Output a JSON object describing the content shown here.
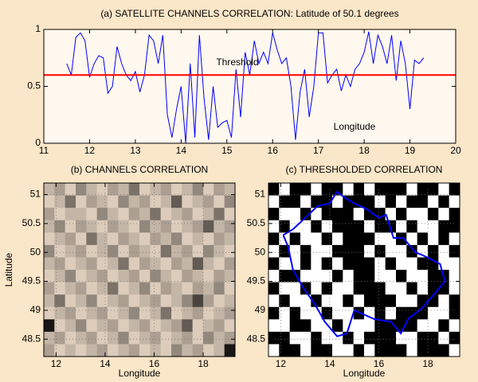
{
  "chart_data": [
    {
      "type": "line",
      "title": "(a) SATELLITE CHANNELS CORRELATION: Latitude of 50.1 degrees",
      "annotations": [
        "Threshold",
        "Longitude"
      ],
      "xlim": [
        11,
        20
      ],
      "ylim": [
        0,
        1
      ],
      "xticks": [
        11,
        12,
        13,
        14,
        15,
        16,
        17,
        18,
        19,
        20
      ],
      "yticks": [
        0,
        0.5,
        1
      ],
      "color": "#0000ff",
      "threshold": 0.6,
      "threshold_color": "#ff0000",
      "x": [
        11.5,
        11.6,
        11.7,
        11.8,
        11.9,
        12.0,
        12.1,
        12.2,
        12.3,
        12.4,
        12.5,
        12.6,
        12.7,
        12.8,
        12.9,
        13.0,
        13.1,
        13.2,
        13.3,
        13.4,
        13.5,
        13.6,
        13.7,
        13.8,
        13.9,
        14.0,
        14.1,
        14.2,
        14.3,
        14.4,
        14.5,
        14.6,
        14.7,
        14.8,
        14.9,
        15.0,
        15.1,
        15.2,
        15.3,
        15.4,
        15.5,
        15.6,
        15.7,
        15.8,
        15.9,
        16.0,
        16.1,
        16.2,
        16.3,
        16.4,
        16.5,
        16.6,
        16.7,
        16.8,
        16.9,
        17.0,
        17.1,
        17.2,
        17.3,
        17.4,
        17.5,
        17.6,
        17.7,
        17.8,
        17.9,
        18.0,
        18.1,
        18.2,
        18.3,
        18.4,
        18.5,
        18.6,
        18.7,
        18.8,
        18.9,
        19.0,
        19.1,
        19.2,
        19.3
      ],
      "values": [
        0.7,
        0.6,
        0.93,
        0.97,
        0.9,
        0.58,
        0.7,
        0.77,
        0.75,
        0.44,
        0.5,
        0.85,
        0.7,
        0.6,
        0.55,
        0.63,
        0.45,
        0.6,
        0.95,
        0.9,
        0.7,
        0.95,
        0.25,
        0.05,
        0.3,
        0.5,
        0,
        0.7,
        0.05,
        0.95,
        0.4,
        0.03,
        0.5,
        0.14,
        0.18,
        0.2,
        0.05,
        0.65,
        0.23,
        0.8,
        0.6,
        0.9,
        0.7,
        0.8,
        0.7,
        0.97,
        0.82,
        0.7,
        0.75,
        0.5,
        0.03,
        0.45,
        0.65,
        0.23,
        0.5,
        0.97,
        0.97,
        0.53,
        0.6,
        0.65,
        0.46,
        0.6,
        0.5,
        0.65,
        0.7,
        0.8,
        0.98,
        0.7,
        0.95,
        0.85,
        0.7,
        0.95,
        0.55,
        0.9,
        0.7,
        0.3,
        0.73,
        0.7,
        0.75
      ]
    },
    {
      "type": "heatmap",
      "title": "(b) CHANNELS CORRELATION",
      "xlabel": "Longitude",
      "ylabel": "Latitude",
      "xlim": [
        11.5,
        19.3
      ],
      "ylim": [
        48.2,
        51.2
      ],
      "xticks": [
        12,
        14,
        16,
        18
      ],
      "yticks": [
        48.5,
        49,
        49.5,
        50,
        50.5,
        51
      ],
      "grid": true,
      "color_low": "#f5e3d0",
      "color_high": "#000000",
      "z": [
        [
          0.2,
          0.3,
          0.1,
          0.4,
          0.2,
          0.1,
          0.3,
          0.2,
          0.5,
          0.1,
          0.2,
          0.3,
          0.1,
          0.2,
          0.4,
          0.1,
          0.3,
          0.2
        ],
        [
          0.1,
          0.2,
          0.5,
          0.1,
          0.3,
          0.2,
          0.1,
          0.4,
          0.2,
          0.3,
          0.1,
          0.2,
          0.6,
          0.1,
          0.2,
          0.3,
          0.1,
          0.4
        ],
        [
          0.3,
          0.1,
          0.2,
          0.2,
          0.1,
          0.4,
          0.2,
          0.1,
          0.3,
          0.2,
          0.5,
          0.1,
          0.2,
          0.3,
          0.1,
          0.2,
          0.5,
          0.1
        ],
        [
          0.2,
          0.4,
          0.1,
          0.3,
          0.2,
          0.1,
          0.3,
          0.2,
          0.1,
          0.4,
          0.2,
          0.3,
          0.1,
          0.2,
          0.3,
          0.6,
          0.2,
          0.3
        ],
        [
          0.1,
          0.2,
          0.3,
          0.1,
          0.5,
          0.2,
          0.1,
          0.3,
          0.2,
          0.1,
          0.3,
          0.2,
          0.4,
          0.1,
          0.2,
          0.1,
          0.3,
          0.2
        ],
        [
          0.4,
          0.1,
          0.2,
          0.3,
          0.1,
          0.2,
          0.4,
          0.1,
          0.3,
          0.2,
          0.1,
          0.5,
          0.2,
          0.3,
          0.1,
          0.4,
          0.2,
          0.1
        ],
        [
          0.2,
          0.3,
          0.1,
          0.2,
          0.3,
          0.1,
          0.2,
          0.5,
          0.1,
          0.3,
          0.2,
          0.1,
          0.3,
          0.2,
          0.6,
          0.2,
          0.1,
          0.3
        ],
        [
          0.1,
          0.2,
          0.4,
          0.1,
          0.2,
          0.3,
          0.1,
          0.2,
          0.3,
          0.1,
          0.4,
          0.2,
          0.1,
          0.3,
          0.2,
          0.1,
          0.3,
          0.2
        ],
        [
          0.3,
          0.1,
          0.2,
          0.3,
          0.1,
          0.2,
          0.5,
          0.1,
          0.2,
          0.4,
          0.1,
          0.3,
          0.2,
          0.1,
          0.3,
          0.2,
          0.4,
          0.1
        ],
        [
          0.2,
          0.5,
          0.1,
          0.2,
          0.4,
          0.1,
          0.2,
          0.3,
          0.1,
          0.2,
          0.3,
          0.1,
          0.2,
          0.4,
          0.7,
          0.3,
          0.1,
          0.2
        ],
        [
          0.1,
          0.2,
          0.3,
          0.1,
          0.2,
          0.3,
          0.1,
          0.2,
          0.4,
          0.1,
          0.2,
          0.5,
          0.1,
          0.2,
          0.3,
          0.1,
          0.2,
          0.3
        ],
        [
          0.9,
          0.1,
          0.2,
          0.4,
          0.1,
          0.2,
          0.3,
          0.1,
          0.2,
          0.3,
          0.1,
          0.2,
          0.3,
          0.6,
          0.1,
          0.2,
          0.3,
          0.1
        ],
        [
          0.2,
          0.3,
          0.1,
          0.2,
          0.3,
          0.1,
          0.2,
          0.4,
          0.1,
          0.2,
          0.3,
          0.1,
          0.2,
          0.3,
          0.1,
          0.4,
          0.2,
          0.3
        ],
        [
          0.3,
          0.1,
          0.2,
          0.1,
          0.2,
          0.3,
          0.1,
          0.2,
          0.3,
          0.1,
          0.2,
          0.1,
          0.4,
          0.2,
          0.3,
          0.1,
          0.2,
          0.9
        ]
      ]
    },
    {
      "type": "heatmap",
      "title": "(c) THRESHOLDED CORRELATION",
      "xlabel": "Longitude",
      "xlim": [
        11.5,
        19.3
      ],
      "ylim": [
        48.2,
        51.2
      ],
      "xticks": [
        12,
        14,
        16,
        18
      ],
      "yticks": [
        48.5,
        49,
        49.5,
        50,
        50.5,
        51
      ],
      "grid": true,
      "color_low": "#ffffff",
      "color_high": "#000000",
      "z": [
        [
          1,
          0,
          1,
          1,
          0,
          1,
          1,
          0,
          1,
          0,
          1,
          1,
          1,
          0,
          1,
          1,
          0,
          1
        ],
        [
          0,
          1,
          1,
          0,
          1,
          1,
          0,
          1,
          1,
          1,
          0,
          1,
          0,
          1,
          1,
          0,
          1,
          0
        ],
        [
          1,
          0,
          0,
          1,
          0,
          1,
          1,
          1,
          0,
          1,
          1,
          0,
          1,
          0,
          0,
          1,
          0,
          1
        ],
        [
          0,
          1,
          0,
          0,
          1,
          0,
          1,
          1,
          1,
          0,
          1,
          1,
          0,
          1,
          0,
          0,
          1,
          1
        ],
        [
          1,
          0,
          1,
          0,
          0,
          1,
          0,
          1,
          1,
          1,
          0,
          0,
          1,
          0,
          1,
          0,
          1,
          0
        ],
        [
          0,
          1,
          0,
          1,
          0,
          0,
          1,
          1,
          1,
          0,
          1,
          0,
          0,
          1,
          0,
          1,
          0,
          1
        ],
        [
          1,
          0,
          0,
          1,
          0,
          1,
          0,
          1,
          1,
          1,
          0,
          1,
          0,
          0,
          1,
          1,
          0,
          0
        ],
        [
          0,
          1,
          1,
          0,
          0,
          0,
          1,
          0,
          1,
          1,
          0,
          0,
          1,
          0,
          0,
          1,
          1,
          0
        ],
        [
          1,
          0,
          0,
          1,
          0,
          1,
          0,
          0,
          1,
          1,
          1,
          0,
          0,
          1,
          0,
          1,
          1,
          0
        ],
        [
          0,
          1,
          0,
          0,
          1,
          0,
          0,
          1,
          0,
          1,
          1,
          1,
          0,
          0,
          1,
          1,
          0,
          1
        ],
        [
          1,
          0,
          1,
          0,
          0,
          1,
          0,
          0,
          1,
          0,
          1,
          0,
          1,
          1,
          1,
          0,
          0,
          1
        ],
        [
          0,
          0,
          1,
          1,
          0,
          0,
          1,
          0,
          0,
          0,
          1,
          1,
          1,
          1,
          0,
          0,
          1,
          0
        ],
        [
          1,
          1,
          0,
          0,
          1,
          0,
          0,
          1,
          0,
          1,
          1,
          1,
          0,
          0,
          1,
          1,
          0,
          1
        ],
        [
          0,
          1,
          1,
          0,
          1,
          1,
          0,
          0,
          1,
          0,
          1,
          1,
          1,
          0,
          1,
          1,
          1,
          0
        ]
      ],
      "boundary": {
        "color": "#0000ff",
        "x": [
          12.1,
          12.5,
          13.0,
          13.5,
          14.0,
          14.3,
          14.6,
          15.0,
          15.5,
          16.0,
          16.3,
          16.6,
          17.0,
          17.5,
          17.8,
          18.5,
          18.7,
          18.3,
          17.8,
          17.2,
          16.9,
          16.5,
          15.8,
          15.0,
          14.7,
          14.3,
          13.8,
          13.4,
          12.9,
          12.5,
          12.3,
          12.1
        ],
        "y": [
          50.3,
          50.4,
          50.6,
          50.8,
          50.85,
          51.05,
          50.95,
          50.85,
          50.75,
          50.6,
          50.65,
          50.25,
          50.25,
          50.0,
          49.95,
          49.8,
          49.5,
          49.3,
          49.05,
          48.85,
          48.6,
          48.8,
          48.85,
          49.0,
          48.6,
          48.55,
          48.8,
          49.1,
          49.4,
          49.7,
          50.1,
          50.3
        ]
      }
    }
  ]
}
